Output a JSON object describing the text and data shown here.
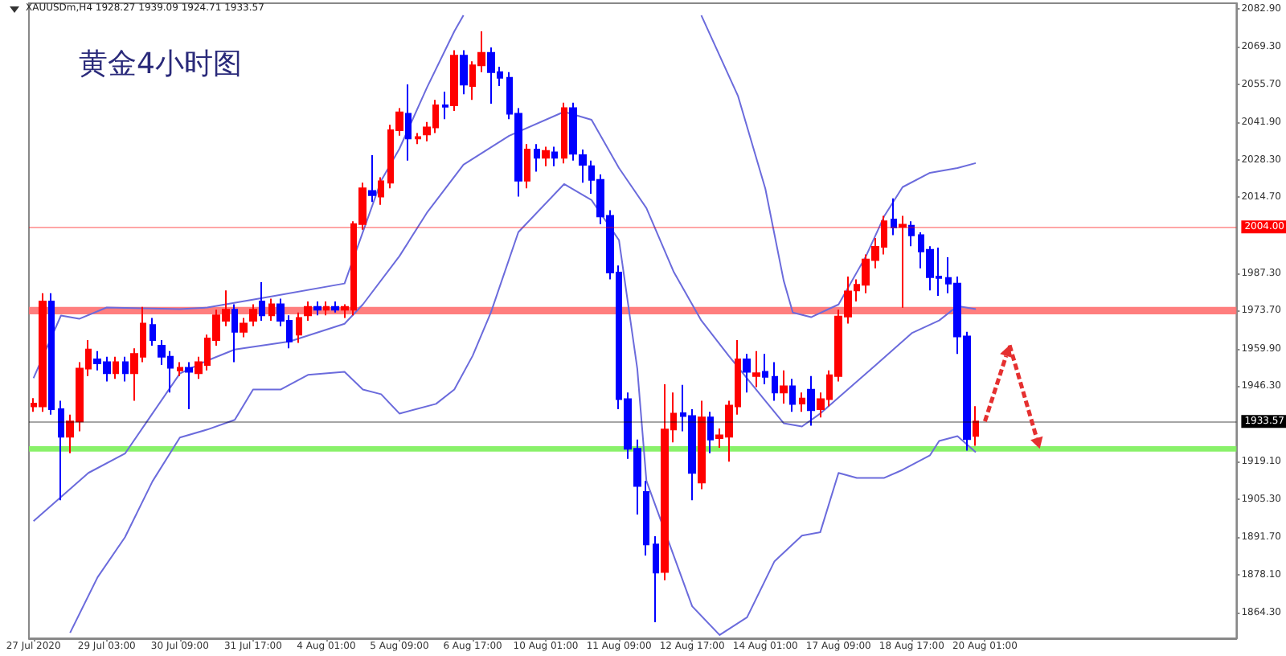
{
  "chart_data": {
    "type": "candlestick",
    "title": "黄金4小时图",
    "annotations": [
      "XAUUSDm,H4 1928.27 1939.09 1924.71 1933.57"
    ],
    "categories": [
      "27 Jul 2020",
      null,
      null,
      null,
      null,
      null,
      null,
      null,
      "29 Jul 03:00",
      null,
      null,
      null,
      null,
      null,
      null,
      null,
      "30 Jul 09:00",
      null,
      null,
      null,
      null,
      null,
      null,
      null,
      "31 Jul 17:00",
      null,
      null,
      null,
      null,
      null,
      null,
      null,
      "4 Aug 01:00",
      null,
      null,
      null,
      null,
      null,
      null,
      null,
      "5 Aug 09:00",
      null,
      null,
      null,
      null,
      null,
      null,
      null,
      "6 Aug 17:00",
      null,
      null,
      null,
      null,
      null,
      null,
      null,
      "10 Aug 01:00",
      null,
      null,
      null,
      null,
      null,
      null,
      null,
      "11 Aug 09:00",
      null,
      null,
      null,
      null,
      null,
      null,
      null,
      "12 Aug 17:00",
      null,
      null,
      null,
      null,
      null,
      null,
      null,
      "14 Aug 01:00",
      null,
      null,
      null,
      null,
      null,
      null,
      null,
      "17 Aug 09:00",
      null,
      null,
      null,
      null,
      null,
      null,
      null,
      "18 Aug 17:00",
      null,
      null,
      null,
      null,
      null,
      null,
      null,
      "20 Aug 01:00",
      null,
      null,
      null,
      null,
      null,
      null,
      null,
      null,
      null,
      null,
      null,
      null,
      null,
      null,
      null,
      null,
      null,
      null,
      null,
      null,
      null,
      null,
      null,
      null,
      null,
      null,
      null
    ],
    "ylim": [
      1855,
      2085
    ],
    "yticks": [
      {
        "value": 1864.3,
        "label": "1864.30"
      },
      {
        "value": 1878.1,
        "label": "1878.10"
      },
      {
        "value": 1891.7,
        "label": "1891.70"
      },
      {
        "value": 1905.3,
        "label": "1905.30"
      },
      {
        "value": 1919.1,
        "label": "1919.10"
      },
      {
        "value": 1946.3,
        "label": "1946.30"
      },
      {
        "value": 1959.9,
        "label": "1959.90"
      },
      {
        "value": 1973.7,
        "label": "1973.70"
      },
      {
        "value": 1987.3,
        "label": "1987.30"
      },
      {
        "value": 2014.7,
        "label": "2014.70"
      },
      {
        "value": 2028.3,
        "label": "2028.30"
      },
      {
        "value": 2041.9,
        "label": "2041.90"
      },
      {
        "value": 2055.7,
        "label": "2055.70"
      },
      {
        "value": 2069.3,
        "label": "2069.30"
      },
      {
        "value": 2082.9,
        "label": "2082.90"
      }
    ],
    "marker": "none",
    "line_style": "solid",
    "ref_lines": [
      {
        "axis": "y",
        "value": 2004.0,
        "label": "2004.00",
        "color": "#ff0000"
      },
      {
        "axis": "y",
        "value": 1933.57,
        "label": "1933.57",
        "color": "#000000"
      }
    ],
    "bands": [
      {
        "axis": "y",
        "from": 1972.3,
        "to": 1975.0,
        "color": "#ff7070"
      },
      {
        "axis": "y",
        "from": 1922.6,
        "to": 1924.6,
        "color": "#7cf05a"
      }
    ],
    "series": [
      {
        "ohlc": [
          [
            1939,
            1942,
            1937,
            1940
          ],
          [
            1939,
            1980,
            1937,
            1977
          ],
          [
            1977,
            1980,
            1936,
            1938
          ],
          [
            1938,
            1941,
            1905,
            1928
          ],
          [
            1928,
            1936,
            1922,
            1933.5
          ],
          [
            1933.5,
            1955,
            1930,
            1952.7
          ],
          [
            1952.7,
            1963,
            1950,
            1959.6
          ],
          [
            1956,
            1959,
            1952,
            1954.6
          ],
          [
            1955,
            1957,
            1948,
            1951
          ],
          [
            1951,
            1957,
            1949,
            1955
          ],
          [
            1955,
            1957,
            1948,
            1951
          ],
          [
            1951,
            1960,
            1941,
            1958
          ],
          [
            1957,
            1975,
            1955,
            1969
          ],
          [
            1968.5,
            1971,
            1961,
            1963
          ],
          [
            1961,
            1963,
            1954,
            1957
          ],
          [
            1957,
            1959,
            1944,
            1953
          ],
          [
            1952,
            1955,
            1950,
            1953
          ],
          [
            1953,
            1955,
            1938,
            1951.5
          ],
          [
            1951,
            1957,
            1949,
            1955
          ],
          [
            1954,
            1965,
            1952,
            1963.6
          ],
          [
            1963,
            1974,
            1961,
            1972
          ],
          [
            1970,
            1981,
            1968,
            1974
          ],
          [
            1974,
            1976,
            1955,
            1966
          ],
          [
            1966,
            1971,
            1964,
            1969
          ],
          [
            1970,
            1976,
            1968,
            1974
          ],
          [
            1977,
            1984,
            1970,
            1972
          ],
          [
            1972,
            1978,
            1970,
            1976
          ],
          [
            1976,
            1978,
            1968,
            1970
          ],
          [
            1970,
            1972,
            1960,
            1962.5
          ],
          [
            1965,
            1973,
            1962,
            1971
          ],
          [
            1972,
            1977,
            1970,
            1975
          ],
          [
            1975,
            1977,
            1972,
            1974
          ],
          [
            1974,
            1977,
            1972,
            1975
          ],
          [
            1975,
            1977,
            1973,
            1974
          ],
          [
            1974,
            1976,
            1971,
            1975
          ],
          [
            1974,
            2006,
            1972,
            2005
          ],
          [
            2005,
            2020,
            2003,
            2018
          ],
          [
            2017,
            2030,
            2013,
            2015.5
          ],
          [
            2015,
            2022,
            2012,
            2020.5
          ],
          [
            2020,
            2041,
            2018,
            2039
          ],
          [
            2039,
            2047,
            2037,
            2045.5
          ],
          [
            2045,
            2055.6,
            2028,
            2036
          ],
          [
            2036,
            2038,
            2034,
            2036.5
          ],
          [
            2037.5,
            2042,
            2035,
            2040
          ],
          [
            2040,
            2050,
            2038,
            2048
          ],
          [
            2048,
            2053,
            2043,
            2047.5
          ],
          [
            2048,
            2068,
            2046,
            2066
          ],
          [
            2066,
            2068,
            2052,
            2055.5
          ],
          [
            2055,
            2064,
            2050,
            2062.5
          ],
          [
            2062.5,
            2074.8,
            2060,
            2067
          ],
          [
            2067,
            2069,
            2048.6,
            2060
          ],
          [
            2060,
            2062,
            2055,
            2058
          ],
          [
            2058,
            2060,
            2043,
            2045
          ],
          [
            2045,
            2047,
            2015,
            2020.7
          ],
          [
            2020.7,
            2034,
            2018,
            2032
          ],
          [
            2032,
            2034,
            2024,
            2029
          ],
          [
            2029,
            2033,
            2026,
            2031.5
          ],
          [
            2031,
            2033,
            2026,
            2029
          ],
          [
            2029,
            2049,
            2027,
            2047
          ],
          [
            2047,
            2049,
            2028,
            2030.5
          ],
          [
            2030,
            2032,
            2020,
            2026.5
          ],
          [
            2026,
            2028,
            2016,
            2021
          ],
          [
            2021,
            2023,
            2005,
            2007.8
          ],
          [
            2008,
            2010,
            1985,
            1987.5
          ],
          [
            1987.5,
            1990,
            1938,
            1941.6
          ],
          [
            1941.6,
            1944,
            1920,
            1923.6
          ],
          [
            1923.6,
            1927,
            1899.8,
            1910.2
          ],
          [
            1908,
            1912,
            1885,
            1889
          ],
          [
            1889,
            1892,
            1860.8,
            1878.8
          ],
          [
            1879,
            1947,
            1876,
            1930.6
          ],
          [
            1930.6,
            1944,
            1926,
            1936.4
          ],
          [
            1936.5,
            1946.8,
            1930,
            1935.5
          ],
          [
            1935.5,
            1938,
            1905,
            1914.9
          ],
          [
            1911.4,
            1941,
            1909,
            1935
          ],
          [
            1935,
            1937,
            1922,
            1927
          ],
          [
            1927.5,
            1931,
            1924,
            1928.5
          ],
          [
            1928,
            1941,
            1919,
            1939.3
          ],
          [
            1939,
            1963,
            1936,
            1956
          ],
          [
            1956,
            1958,
            1944,
            1951.5
          ],
          [
            1950,
            1959,
            1946,
            1951
          ],
          [
            1951.5,
            1958,
            1947,
            1949.7
          ],
          [
            1949.7,
            1955,
            1941,
            1944
          ],
          [
            1944,
            1952,
            1940,
            1946.3
          ],
          [
            1946.3,
            1949,
            1937,
            1939.9
          ],
          [
            1940,
            1944,
            1937,
            1941.8
          ],
          [
            1945,
            1950,
            1932,
            1937.6
          ],
          [
            1938,
            1944,
            1935,
            1941.6
          ],
          [
            1941.6,
            1952,
            1939,
            1950.3
          ],
          [
            1950,
            1974,
            1948,
            1971.5
          ],
          [
            1971.5,
            1986,
            1969,
            1980.6
          ],
          [
            1981,
            1985,
            1977,
            1983
          ],
          [
            1983,
            1994,
            1980,
            1992.2
          ],
          [
            1992,
            2000,
            1989,
            1996.8
          ],
          [
            1996.8,
            2008,
            1994,
            2006
          ],
          [
            2006.7,
            2014.3,
            2001,
            2003.8
          ],
          [
            2004,
            2008,
            1974.7,
            2004.8
          ],
          [
            2004.4,
            2006,
            1997,
            2000.9
          ],
          [
            2001,
            2002,
            1989,
            1995.1
          ],
          [
            1995.7,
            1997,
            1981,
            1985.8
          ],
          [
            1986,
            1996.5,
            1979,
            1985.5
          ],
          [
            1985.5,
            1993,
            1980,
            1983.5
          ],
          [
            1983.5,
            1986,
            1958,
            1964.3
          ],
          [
            1964.3,
            1966,
            1923,
            1927.1
          ],
          [
            1928.27,
            1939.09,
            1924.71,
            1933.57
          ],
          null,
          null,
          null,
          null,
          null,
          null,
          null,
          null,
          null,
          null,
          null,
          null,
          null,
          null,
          null,
          null,
          null,
          null,
          null,
          null,
          null,
          null,
          null,
          null,
          null,
          null,
          null,
          null
        ],
        "colors": [
          "#ff0000",
          "#ff0000",
          "#0000ff",
          "#0000ff",
          "#ff0000",
          "#ff0000",
          "#ff0000",
          "#0000ff",
          "#0000ff",
          "#ff0000",
          "#0000ff",
          "#ff0000",
          "#ff0000",
          "#0000ff",
          "#0000ff",
          "#0000ff",
          "#ff0000",
          "#0000ff",
          "#ff0000",
          "#ff0000",
          "#ff0000",
          "#ff0000",
          "#0000ff",
          "#ff0000",
          "#ff0000",
          "#0000ff",
          "#ff0000",
          "#0000ff",
          "#0000ff",
          "#ff0000",
          "#ff0000",
          "#0000ff",
          "#ff0000",
          "#0000ff",
          "#ff0000",
          "#ff0000",
          "#ff0000",
          "#0000ff",
          "#ff0000",
          "#ff0000",
          "#ff0000",
          "#0000ff",
          "#ff0000",
          "#ff0000",
          "#ff0000",
          "#0000ff",
          "#ff0000",
          "#0000ff",
          "#ff0000",
          "#ff0000",
          "#0000ff",
          "#0000ff",
          "#0000ff",
          "#0000ff",
          "#ff0000",
          "#0000ff",
          "#ff0000",
          "#0000ff",
          "#ff0000",
          "#0000ff",
          "#0000ff",
          "#0000ff",
          "#0000ff",
          "#0000ff",
          "#0000ff",
          "#0000ff",
          "#0000ff",
          "#0000ff",
          "#0000ff",
          "#ff0000",
          "#ff0000",
          "#0000ff",
          "#0000ff",
          "#ff0000",
          "#0000ff",
          "#ff0000",
          "#ff0000",
          "#ff0000",
          "#0000ff",
          "#ff0000",
          "#0000ff",
          "#0000ff",
          "#ff0000",
          "#0000ff",
          "#ff0000",
          "#0000ff",
          "#ff0000",
          "#ff0000",
          "#ff0000",
          "#ff0000",
          "#ff0000",
          "#ff0000",
          "#ff0000",
          "#ff0000",
          "#0000ff",
          "#ff0000",
          "#0000ff",
          "#0000ff",
          "#0000ff",
          "#0000ff",
          "#0000ff",
          "#0000ff",
          "#0000ff",
          "#ff0000",
          null,
          null,
          null,
          null,
          null,
          null,
          null,
          null,
          null,
          null,
          null,
          null,
          null,
          null,
          null,
          null,
          null,
          null,
          null,
          null,
          null,
          null,
          null,
          null,
          null,
          null,
          null,
          null
        ]
      },
      {
        "type": "line",
        "color": "#6b6bdc",
        "values": [
          1949.2,
          null,
          null,
          1971.9,
          null,
          1970.7,
          null,
          null,
          1974.8,
          null,
          null,
          null,
          null,
          null,
          null,
          null,
          1974.2,
          null,
          null,
          1974.8,
          null,
          null,
          null,
          null,
          null,
          null,
          1978.8,
          null,
          null,
          null,
          null,
          null,
          null,
          null,
          1983.5,
          null,
          null,
          null,
          2020.7,
          null,
          2032.3,
          null,
          null,
          2054.4,
          null,
          null,
          2074.8,
          2080.6,
          null,
          null,
          null,
          null,
          null,
          null,
          null,
          null,
          null,
          null,
          null,
          null,
          null,
          null,
          null,
          null,
          null,
          null,
          null,
          null,
          null,
          null,
          null,
          null,
          null,
          null,
          null,
          null,
          null,
          null,
          null,
          null,
          null,
          null,
          null,
          null,
          null,
          null,
          null,
          null,
          null,
          null,
          null,
          null,
          null,
          null,
          null,
          null,
          null,
          null,
          null,
          null,
          null,
          null,
          null,
          null,
          null,
          null,
          null,
          null,
          null,
          null,
          null,
          null,
          null,
          null,
          null,
          null,
          null,
          null,
          null,
          null,
          null,
          null,
          null,
          null,
          null,
          null,
          null,
          null,
          null,
          null,
          null,
          null
        ]
      },
      {
        "type": "line",
        "color": "#6b6bdc",
        "values": [
          null,
          null,
          null,
          null,
          null,
          null,
          null,
          null,
          null,
          null,
          null,
          null,
          null,
          null,
          null,
          null,
          null,
          null,
          null,
          null,
          null,
          null,
          null,
          null,
          null,
          null,
          null,
          null,
          null,
          null,
          null,
          null,
          null,
          null,
          null,
          null,
          null,
          null,
          null,
          null,
          null,
          null,
          null,
          null,
          null,
          null,
          null,
          null,
          null,
          null,
          null,
          null,
          null,
          null,
          null,
          null,
          null,
          null,
          null,
          null,
          null,
          null,
          null,
          null,
          null,
          null,
          null,
          null,
          null,
          null,
          null,
          null,
          null,
          2080.6,
          null,
          null,
          null,
          2051.5,
          null,
          null,
          2017.8,
          null,
          1984.6,
          1973.0,
          null,
          1971.3,
          null,
          null,
          1975.9,
          null,
          null,
          1993.4,
          null,
          2007.9,
          null,
          2018.4,
          null,
          null,
          2023.6,
          null,
          null,
          2025.3,
          null,
          2027.1,
          null,
          null,
          null,
          null,
          null,
          null,
          null,
          null,
          null,
          null,
          null,
          null,
          null,
          null,
          null,
          null,
          null,
          null,
          null,
          null,
          null,
          null,
          null,
          null,
          null,
          null,
          null,
          null
        ]
      },
      {
        "type": "line",
        "color": "#6b6bdc",
        "values": [
          1897.4,
          null,
          null,
          1906.2,
          null,
          null,
          1914.9,
          null,
          null,
          null,
          1921.9,
          null,
          null,
          1936.4,
          null,
          null,
          1950.9,
          null,
          null,
          1955.6,
          null,
          null,
          1959.6,
          null,
          null,
          null,
          null,
          null,
          1962.5,
          null,
          null,
          null,
          null,
          null,
          1968.9,
          null,
          1975.9,
          null,
          null,
          null,
          1993.4,
          null,
          null,
          2009.1,
          null,
          null,
          null,
          2026.5,
          null,
          null,
          null,
          null,
          2037,
          null,
          null,
          null,
          null,
          null,
          2045.7,
          null,
          null,
          2042.8,
          null,
          null,
          2025.3,
          null,
          null,
          2010.8,
          null,
          null,
          1987.6,
          null,
          null,
          1970.1,
          null,
          null,
          1957.3,
          null,
          null,
          null,
          1941,
          null,
          1932.9,
          null,
          1931.7,
          null,
          1936.4,
          null,
          1942.2,
          null,
          null,
          null,
          1953.8,
          null,
          null,
          null,
          1965.5,
          null,
          null,
          1970.1,
          null,
          1975.3,
          null,
          1974.2,
          null,
          null,
          null,
          null,
          null,
          null,
          null,
          null,
          null,
          null,
          null,
          null,
          null,
          null,
          null,
          null,
          null,
          null,
          null,
          null,
          null,
          null,
          null,
          null,
          null,
          null,
          null,
          null
        ]
      },
      {
        "type": "line",
        "color": "#6b6bdc",
        "values": [
          null,
          null,
          null,
          null,
          1857,
          null,
          null,
          1877.1,
          null,
          null,
          1891.6,
          null,
          null,
          1911.8,
          null,
          null,
          1927.7,
          null,
          null,
          1930.6,
          null,
          null,
          1934.1,
          null,
          1945.1,
          null,
          null,
          1945.1,
          null,
          null,
          1950.4,
          null,
          null,
          null,
          1951.5,
          null,
          1945.1,
          null,
          1943.4,
          null,
          1936.4,
          null,
          null,
          null,
          1939.9,
          null,
          1945.1,
          null,
          1957.3,
          null,
          1973,
          null,
          null,
          2002.1,
          null,
          null,
          null,
          null,
          2019.5,
          null,
          null,
          2013.7,
          null,
          null,
          1999.2,
          null,
          1952.7,
          1912,
          null,
          null,
          null,
          null,
          1866.6,
          null,
          null,
          1856.2,
          null,
          null,
          1862.6,
          null,
          null,
          1882.9,
          null,
          null,
          1892.2,
          null,
          1893.4,
          null,
          1914.9,
          null,
          1913.1,
          null,
          null,
          1913.1,
          null,
          1916,
          null,
          null,
          1921.3,
          1926.5,
          null,
          1928.2,
          null,
          1922.4,
          null,
          null,
          null,
          null,
          null,
          null,
          null,
          null,
          null,
          null,
          null,
          null,
          null,
          null,
          null,
          null,
          null,
          null,
          null,
          null,
          null,
          null,
          null,
          null,
          null,
          null,
          null,
          null
        ]
      }
    ]
  }
}
